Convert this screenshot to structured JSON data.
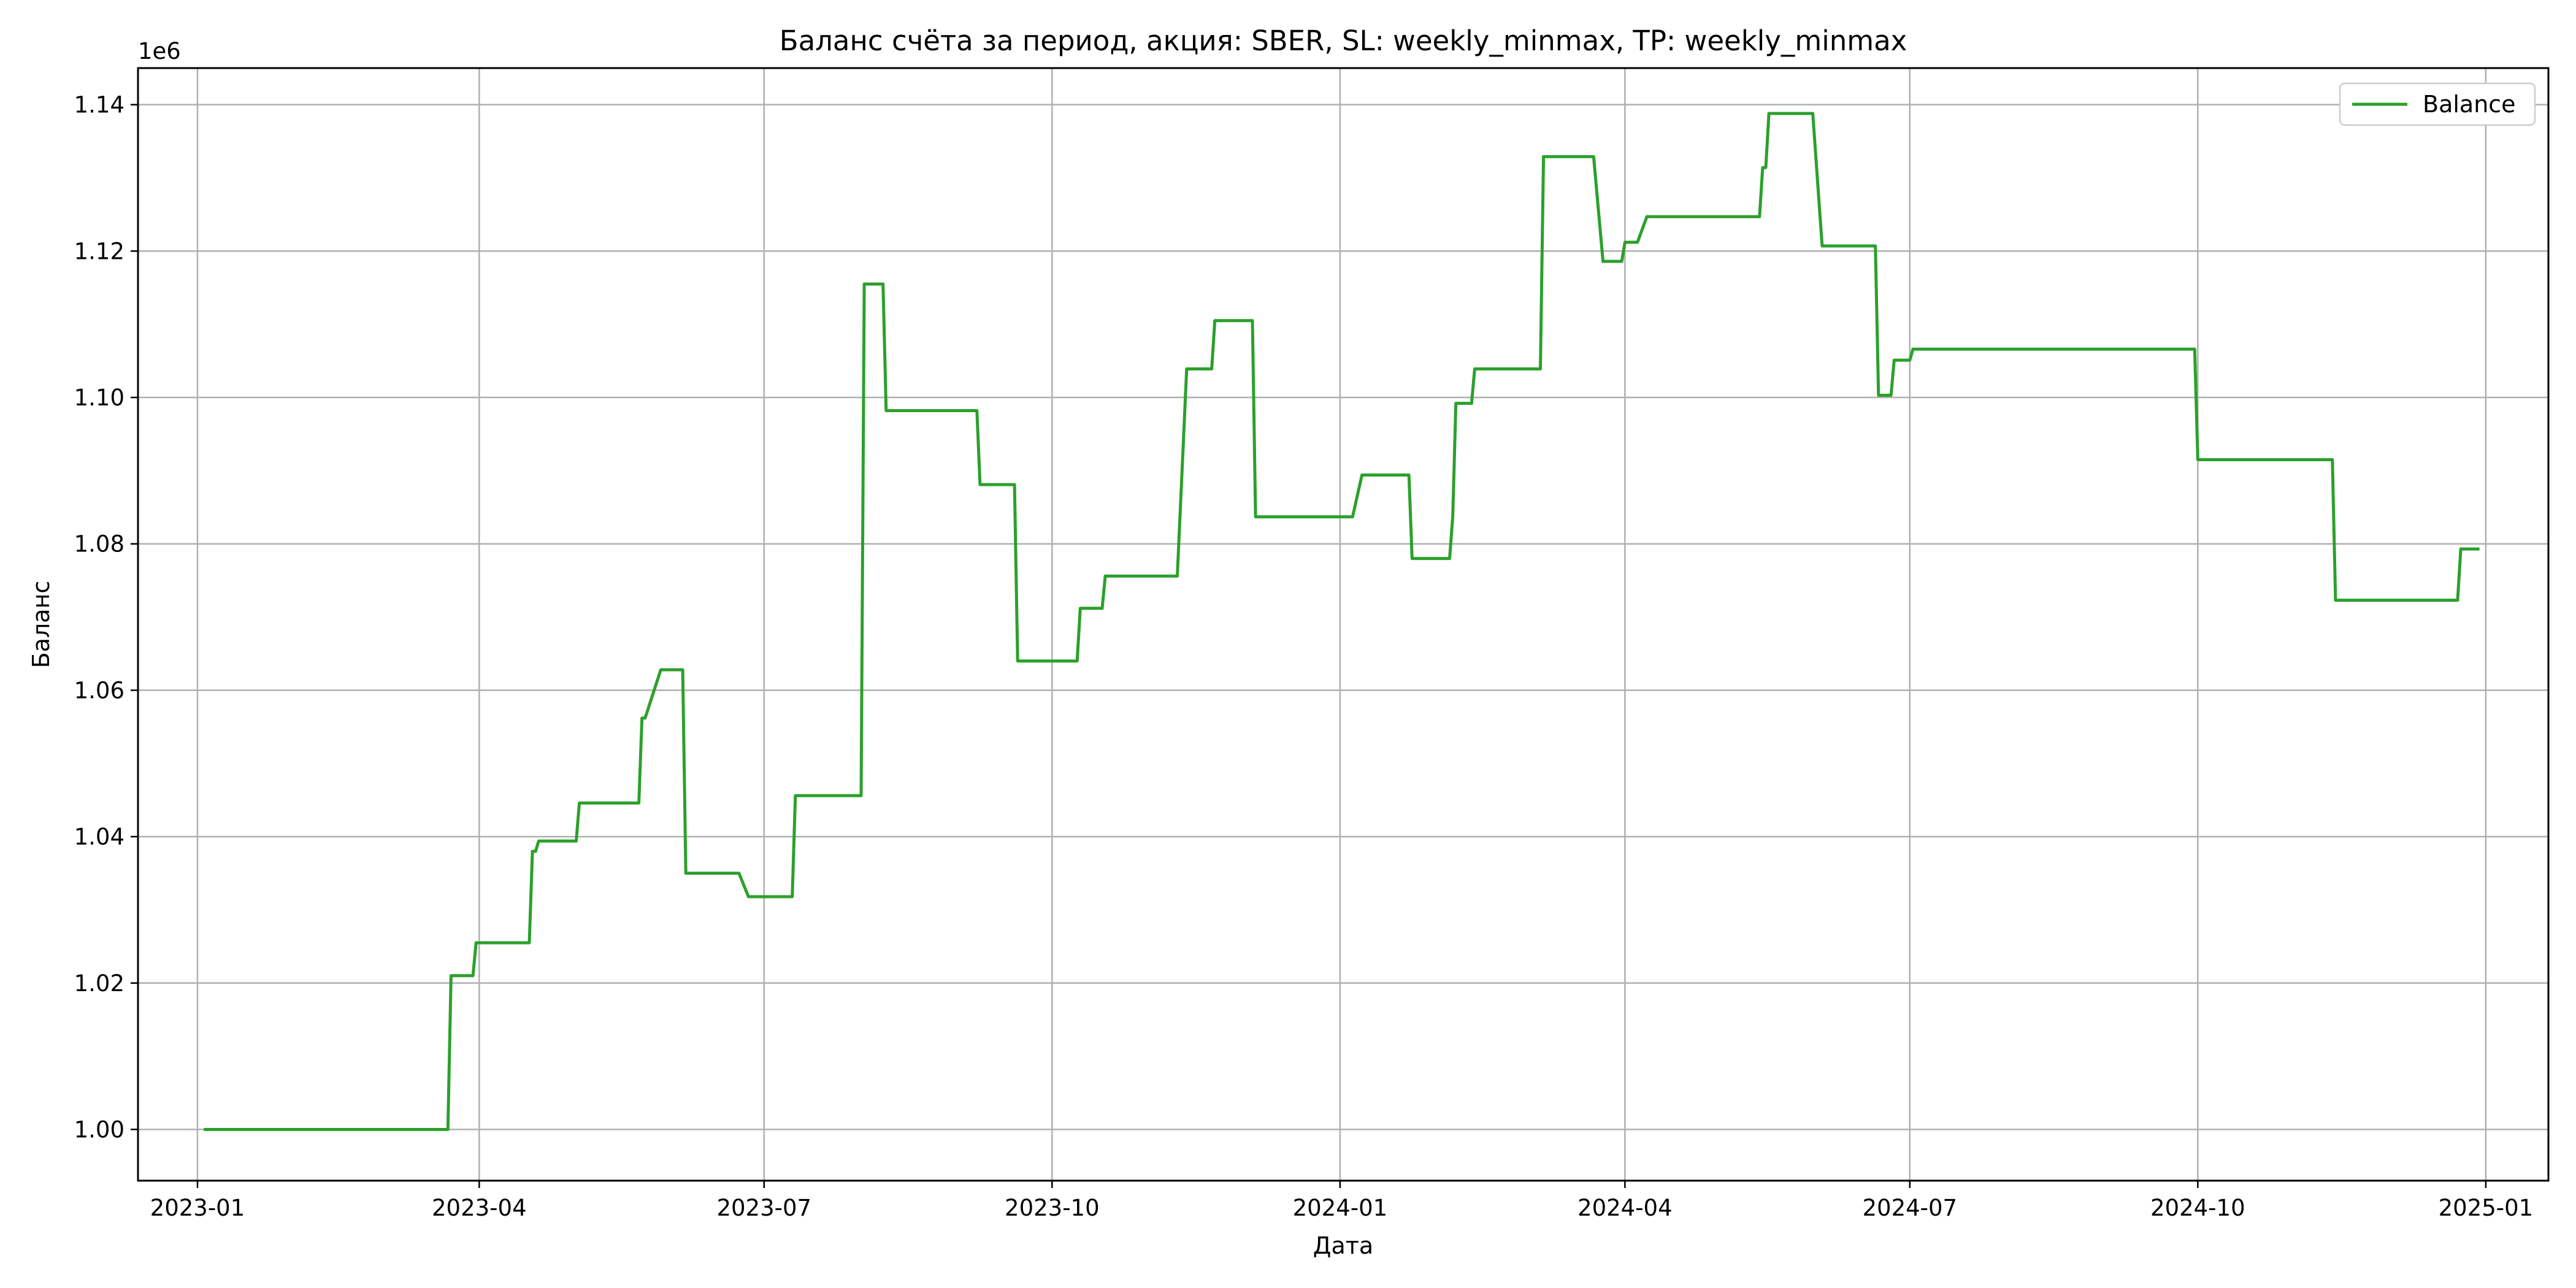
{
  "chart_data": {
    "type": "line",
    "title": "Баланс счёта за период, акция: SBER, SL: weekly_minmax, TP: weekly_minmax",
    "xlabel": "Дата",
    "ylabel": "Баланс",
    "y_offset_label": "1e6",
    "ylim": [
      993000,
      1145000
    ],
    "xlim": [
      "2022-12-13",
      "2025-01-21"
    ],
    "grid": true,
    "legend_position": "top-right",
    "x_ticks": [
      "2023-01",
      "2023-04",
      "2023-07",
      "2023-10",
      "2024-01",
      "2024-04",
      "2024-07",
      "2024-10",
      "2025-01"
    ],
    "y_ticks": [
      {
        "value": 1000000,
        "label": "1.00"
      },
      {
        "value": 1020000,
        "label": "1.02"
      },
      {
        "value": 1040000,
        "label": "1.04"
      },
      {
        "value": 1060000,
        "label": "1.06"
      },
      {
        "value": 1080000,
        "label": "1.08"
      },
      {
        "value": 1100000,
        "label": "1.10"
      },
      {
        "value": 1120000,
        "label": "1.12"
      },
      {
        "value": 1140000,
        "label": "1.14"
      }
    ],
    "series": [
      {
        "name": "Balance",
        "color": "#2ca02c",
        "points": [
          [
            "2023-01-03",
            1000000
          ],
          [
            "2023-03-22",
            1000000
          ],
          [
            "2023-03-23",
            1021000
          ],
          [
            "2023-03-30",
            1021000
          ],
          [
            "2023-03-31",
            1025500
          ],
          [
            "2023-04-17",
            1025500
          ],
          [
            "2023-04-18",
            1038000
          ],
          [
            "2023-04-19",
            1038000
          ],
          [
            "2023-04-20",
            1039400
          ],
          [
            "2023-05-02",
            1039400
          ],
          [
            "2023-05-03",
            1044600
          ],
          [
            "2023-05-22",
            1044600
          ],
          [
            "2023-05-23",
            1056200
          ],
          [
            "2023-05-24",
            1056200
          ],
          [
            "2023-05-29",
            1062800
          ],
          [
            "2023-06-05",
            1062800
          ],
          [
            "2023-06-06",
            1035000
          ],
          [
            "2023-06-23",
            1035000
          ],
          [
            "2023-06-26",
            1031800
          ],
          [
            "2023-07-10",
            1031800
          ],
          [
            "2023-07-11",
            1045600
          ],
          [
            "2023-08-01",
            1045600
          ],
          [
            "2023-08-02",
            1115500
          ],
          [
            "2023-08-08",
            1115500
          ],
          [
            "2023-08-09",
            1098200
          ],
          [
            "2023-09-07",
            1098200
          ],
          [
            "2023-09-08",
            1088100
          ],
          [
            "2023-09-19",
            1088100
          ],
          [
            "2023-09-20",
            1064000
          ],
          [
            "2023-10-09",
            1064000
          ],
          [
            "2023-10-10",
            1071200
          ],
          [
            "2023-10-17",
            1071200
          ],
          [
            "2023-10-18",
            1075600
          ],
          [
            "2023-11-10",
            1075600
          ],
          [
            "2023-11-13",
            1103900
          ],
          [
            "2023-11-21",
            1103900
          ],
          [
            "2023-11-22",
            1110500
          ],
          [
            "2023-12-04",
            1110500
          ],
          [
            "2023-12-05",
            1083700
          ],
          [
            "2024-01-05",
            1083700
          ],
          [
            "2024-01-08",
            1089400
          ],
          [
            "2024-01-23",
            1089400
          ],
          [
            "2024-01-24",
            1078000
          ],
          [
            "2024-02-05",
            1078000
          ],
          [
            "2024-02-06",
            1083700
          ],
          [
            "2024-02-07",
            1099200
          ],
          [
            "2024-02-12",
            1099200
          ],
          [
            "2024-02-13",
            1103900
          ],
          [
            "2024-03-05",
            1103900
          ],
          [
            "2024-03-06",
            1132900
          ],
          [
            "2024-03-22",
            1132900
          ],
          [
            "2024-03-25",
            1118600
          ],
          [
            "2024-03-31",
            1118600
          ],
          [
            "2024-04-01",
            1121200
          ],
          [
            "2024-04-05",
            1121200
          ],
          [
            "2024-04-08",
            1124700
          ],
          [
            "2024-05-14",
            1124700
          ],
          [
            "2024-05-15",
            1131400
          ],
          [
            "2024-05-16",
            1131400
          ],
          [
            "2024-05-17",
            1138800
          ],
          [
            "2024-05-31",
            1138800
          ],
          [
            "2024-06-03",
            1120700
          ],
          [
            "2024-06-20",
            1120700
          ],
          [
            "2024-06-21",
            1100300
          ],
          [
            "2024-06-25",
            1100300
          ],
          [
            "2024-06-26",
            1105100
          ],
          [
            "2024-07-01",
            1105100
          ],
          [
            "2024-07-02",
            1106600
          ],
          [
            "2024-09-30",
            1106600
          ],
          [
            "2024-10-01",
            1091500
          ],
          [
            "2024-11-13",
            1091500
          ],
          [
            "2024-11-14",
            1072300
          ],
          [
            "2024-12-23",
            1072300
          ],
          [
            "2024-12-24",
            1079300
          ],
          [
            "2024-12-30",
            1079300
          ]
        ]
      }
    ]
  }
}
